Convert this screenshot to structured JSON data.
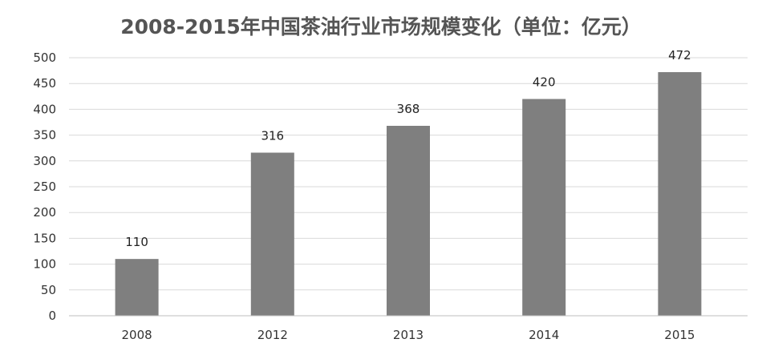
{
  "chart_data": {
    "type": "bar",
    "title": "2008-2015年中国茶油行业市场规模变化（单位：亿元）",
    "categories": [
      "2008",
      "2012",
      "2013",
      "2014",
      "2015"
    ],
    "values": [
      110,
      316,
      368,
      420,
      472
    ],
    "data_labels": [
      "110",
      "316",
      "368",
      "420",
      "472"
    ],
    "ylim": [
      0,
      500
    ],
    "yticks": [
      0,
      50,
      100,
      150,
      200,
      250,
      300,
      350,
      400,
      450,
      500
    ],
    "xlabel": "",
    "ylabel": "",
    "grid": true,
    "legend": "none",
    "bar_color": "#7f7f7f",
    "grid_color": "#d9d9d9"
  }
}
